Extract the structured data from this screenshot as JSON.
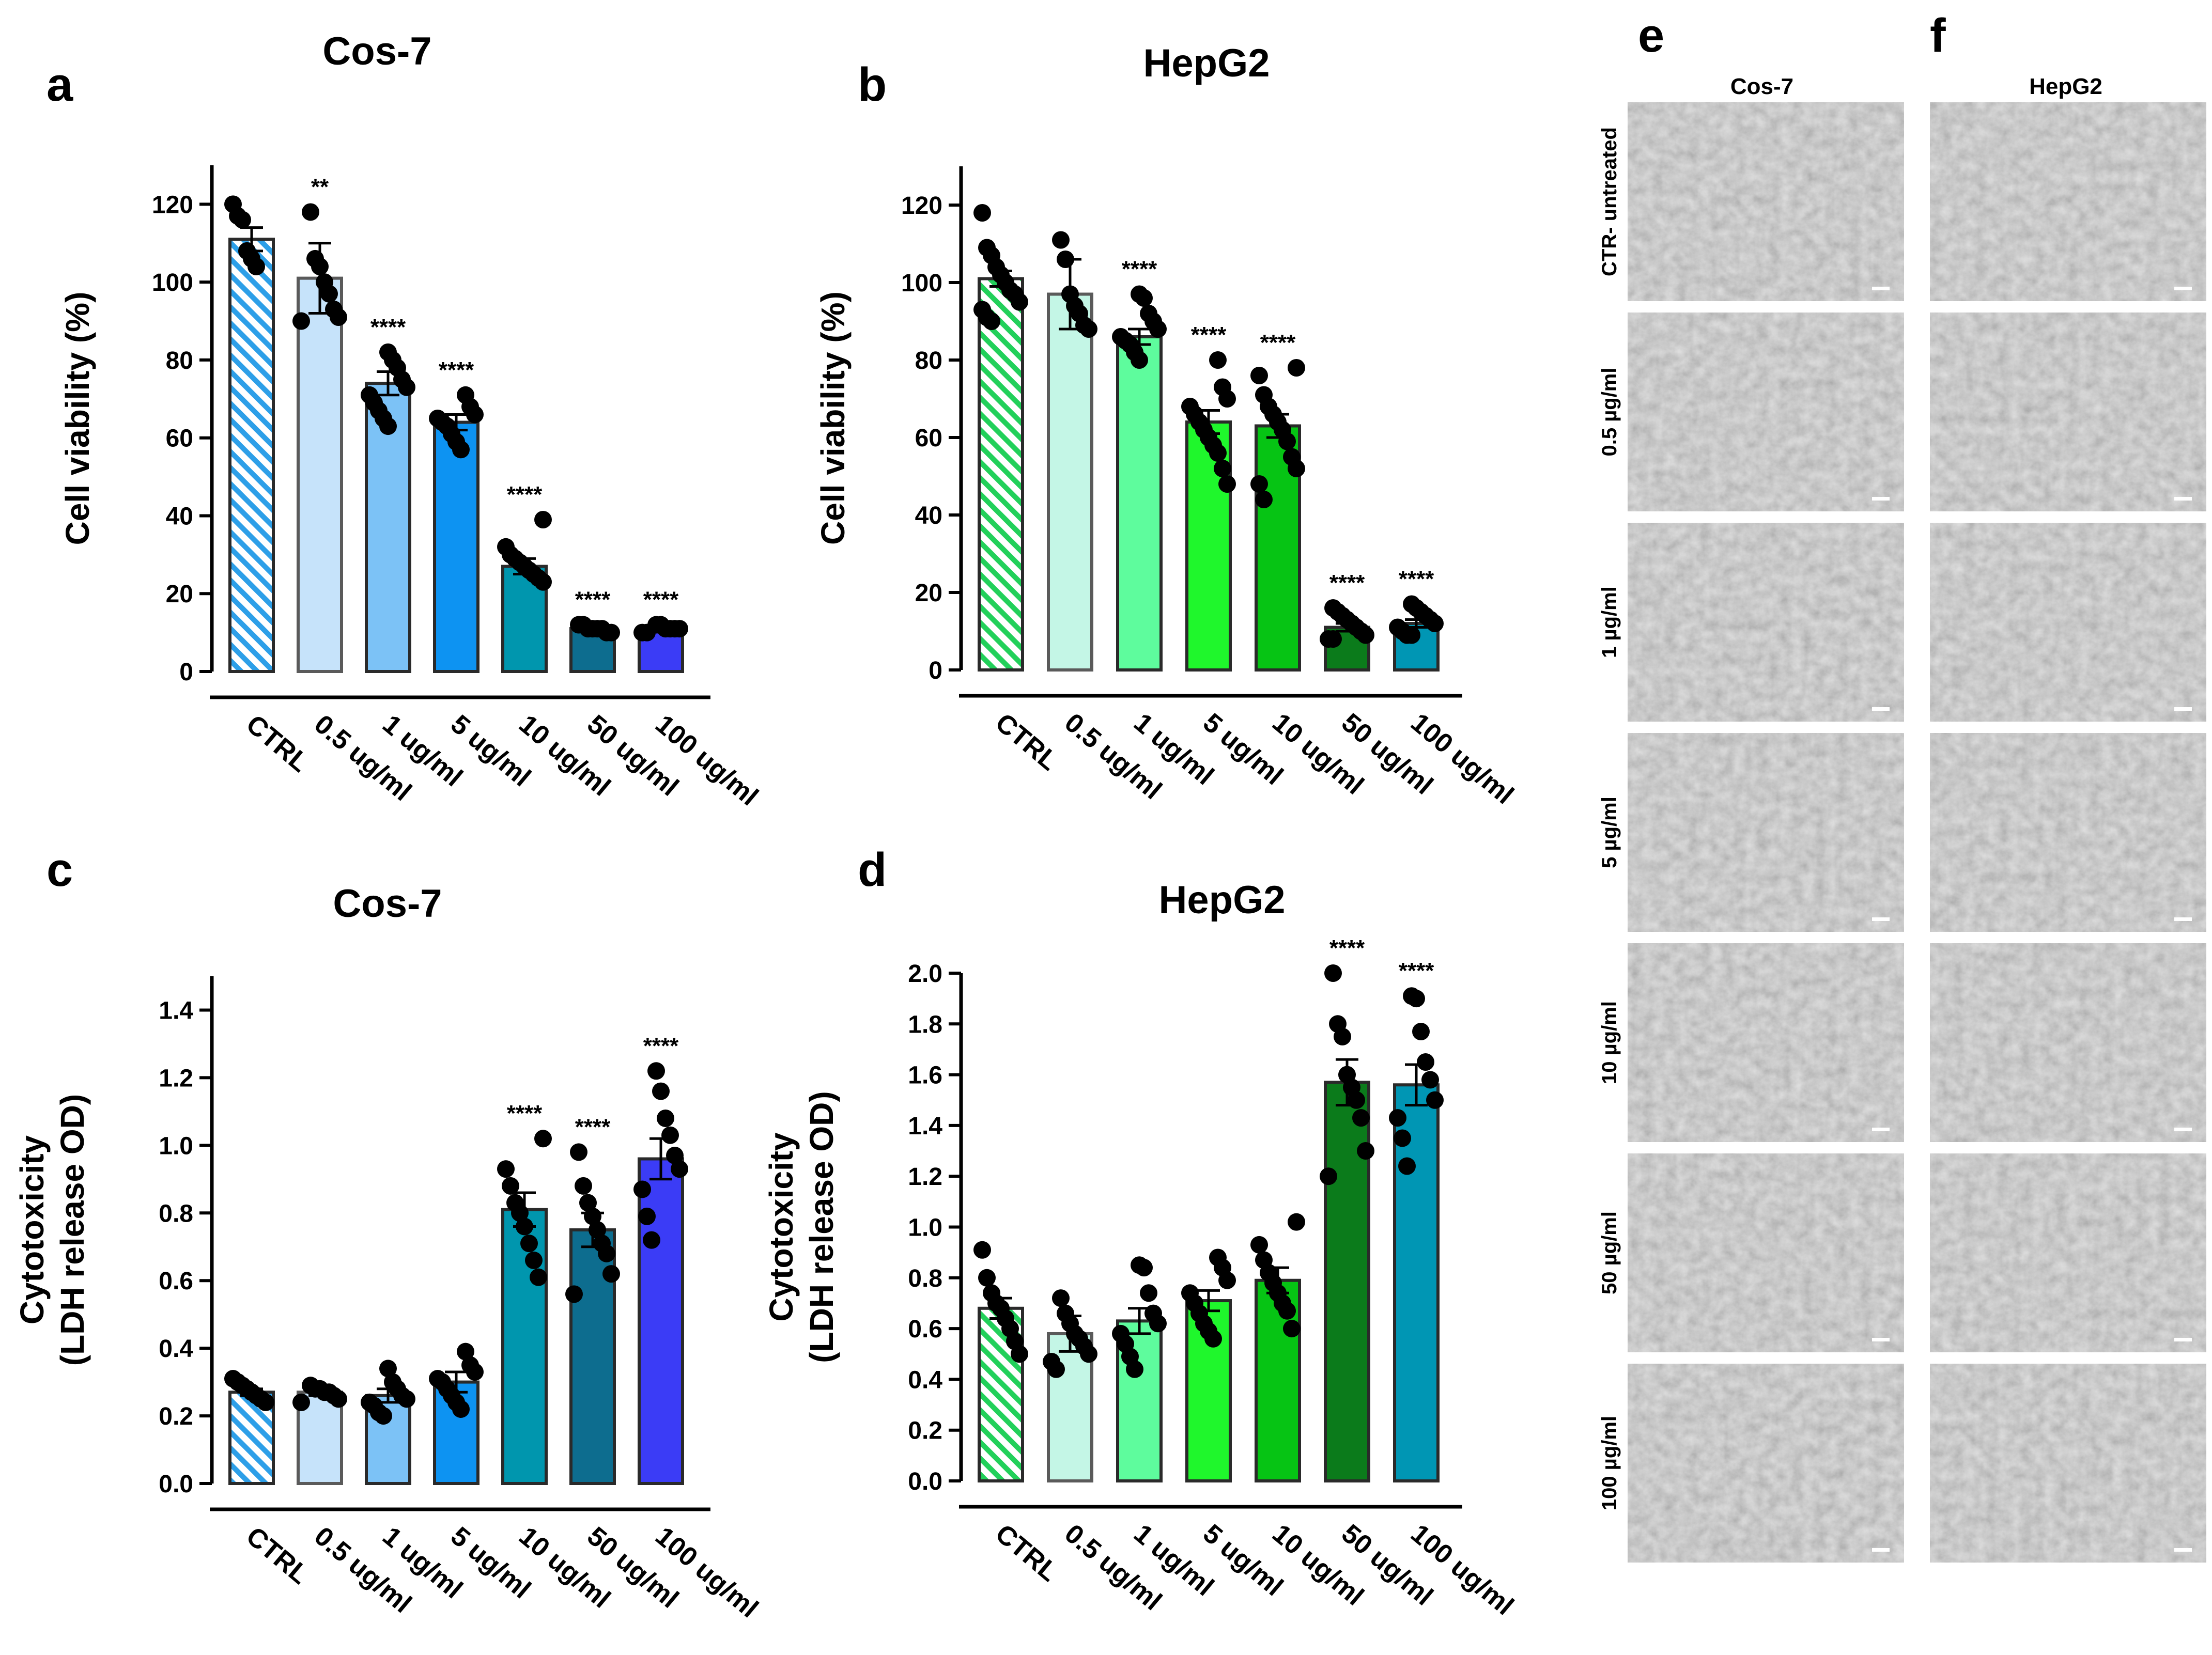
{
  "units": "ug/ml",
  "categories": [
    "CTRL",
    "0.5 ug/ml",
    "1 ug/ml",
    "5 ug/ml",
    "10 ug/ml",
    "50 ug/ml",
    "100 ug/ml"
  ],
  "panel_letters": {
    "a": "a",
    "b": "b",
    "c": "c",
    "d": "d",
    "e": "e",
    "f": "f"
  },
  "chart_data": [
    {
      "id": "a",
      "type": "bar",
      "title": "Cos-7",
      "xlabel": "",
      "ylabel": "Cell viability (%)",
      "ylabel_lines": [
        "Cell viability (%)"
      ],
      "ylim": [
        0,
        130
      ],
      "yticks": [
        0,
        20,
        40,
        60,
        80,
        100,
        120
      ],
      "categories": [
        "CTRL",
        "0.5 ug/ml",
        "1 ug/ml",
        "5 ug/ml",
        "10 ug/ml",
        "50 ug/ml",
        "100 ug/ml"
      ],
      "values": [
        111,
        101,
        74,
        64,
        27,
        11,
        11
      ],
      "errors": [
        3,
        9,
        3,
        2,
        2,
        0.5,
        0.5
      ],
      "significance": [
        "",
        "**",
        "****",
        "****",
        "****",
        "****",
        "****"
      ],
      "colors": [
        "#2d9fe8",
        "#c6e3fa",
        "#7cc2f6",
        "#0d93f2",
        "#0096ae",
        "#0d6d8f",
        "#3b3cf6"
      ],
      "hatched": [
        true,
        false,
        false,
        false,
        false,
        false,
        false
      ],
      "points": [
        [
          120,
          117,
          116,
          108,
          106,
          104
        ],
        [
          118,
          106,
          104,
          100,
          97,
          93,
          91,
          90
        ],
        [
          82,
          80,
          78,
          75,
          73,
          71,
          69,
          67,
          65,
          63
        ],
        [
          71,
          68,
          66,
          65,
          64,
          63,
          61,
          59,
          57
        ],
        [
          39,
          32,
          30,
          29,
          28,
          27,
          26,
          25,
          24,
          23
        ],
        [
          12,
          12,
          11,
          11,
          11,
          11,
          10,
          10
        ],
        [
          12,
          12,
          11,
          11,
          11,
          11,
          10,
          10
        ]
      ]
    },
    {
      "id": "b",
      "type": "bar",
      "title": "HepG2",
      "xlabel": "",
      "ylabel": "Cell viability (%)",
      "ylabel_lines": [
        "Cell viability (%)"
      ],
      "ylim": [
        0,
        130
      ],
      "yticks": [
        0,
        20,
        40,
        60,
        80,
        100,
        120
      ],
      "categories": [
        "CTRL",
        "0.5 ug/ml",
        "1 ug/ml",
        "5 ug/ml",
        "10 ug/ml",
        "50 ug/ml",
        "100 ug/ml"
      ],
      "values": [
        101,
        97,
        86,
        64,
        63,
        11,
        12
      ],
      "errors": [
        2,
        9,
        2,
        3,
        3,
        1,
        1
      ],
      "significance": [
        "",
        "",
        "****",
        "****",
        "****",
        "****",
        "****"
      ],
      "colors": [
        "#22d05a",
        "#c4f6e6",
        "#5efc9d",
        "#1ff72c",
        "#06c414",
        "#0b7b1b",
        "#0096b4"
      ],
      "hatched": [
        true,
        false,
        false,
        false,
        false,
        false,
        false
      ],
      "points": [
        [
          118,
          109,
          107,
          104,
          102,
          100,
          98,
          97,
          95,
          93,
          91,
          90
        ],
        [
          111,
          106,
          97,
          94,
          92,
          89,
          88
        ],
        [
          97,
          96,
          92,
          90,
          88,
          86,
          85,
          84,
          82,
          80
        ],
        [
          80,
          73,
          70,
          68,
          66,
          64,
          62,
          60,
          58,
          56,
          52,
          48
        ],
        [
          78,
          76,
          71,
          68,
          66,
          64,
          62,
          59,
          55,
          52,
          48,
          44
        ],
        [
          16,
          15,
          14,
          13,
          12,
          11,
          10,
          9,
          8,
          8
        ],
        [
          17,
          16,
          15,
          14,
          13,
          12,
          11,
          10,
          9,
          9
        ]
      ]
    },
    {
      "id": "c",
      "type": "bar",
      "title": "Cos-7",
      "xlabel": "",
      "ylabel": "Cytotoxicity (LDH release OD)",
      "ylabel_lines": [
        "Cytotoxicity",
        "(LDH release OD)"
      ],
      "ylim": [
        0,
        1.5
      ],
      "yticks": [
        0.0,
        0.2,
        0.4,
        0.6,
        0.8,
        1.0,
        1.2,
        1.4
      ],
      "categories": [
        "CTRL",
        "0.5 ug/ml",
        "1 ug/ml",
        "5 ug/ml",
        "10 ug/ml",
        "50 ug/ml",
        "100 ug/ml"
      ],
      "values": [
        0.27,
        0.27,
        0.26,
        0.3,
        0.81,
        0.75,
        0.96
      ],
      "errors": [
        0.01,
        0.01,
        0.02,
        0.03,
        0.05,
        0.05,
        0.06
      ],
      "significance": [
        "",
        "",
        "",
        "",
        "****",
        "****",
        "****"
      ],
      "colors": [
        "#2d9fe8",
        "#c6e3fa",
        "#7cc2f6",
        "#0d93f2",
        "#0096ae",
        "#0d6d8f",
        "#3b3cf6"
      ],
      "hatched": [
        true,
        false,
        false,
        false,
        false,
        false,
        false
      ],
      "points": [
        [
          0.31,
          0.3,
          0.29,
          0.28,
          0.27,
          0.26,
          0.25,
          0.24
        ],
        [
          0.29,
          0.28,
          0.28,
          0.27,
          0.27,
          0.26,
          0.25,
          0.24
        ],
        [
          0.34,
          0.3,
          0.28,
          0.26,
          0.25,
          0.24,
          0.23,
          0.21,
          0.2
        ],
        [
          0.39,
          0.35,
          0.33,
          0.31,
          0.3,
          0.28,
          0.26,
          0.24,
          0.22
        ],
        [
          1.02,
          0.93,
          0.88,
          0.83,
          0.8,
          0.76,
          0.71,
          0.66,
          0.61
        ],
        [
          0.98,
          0.88,
          0.83,
          0.79,
          0.75,
          0.71,
          0.68,
          0.62,
          0.56
        ],
        [
          1.22,
          1.16,
          1.08,
          1.03,
          0.97,
          0.93,
          0.87,
          0.79,
          0.72
        ]
      ]
    },
    {
      "id": "d",
      "type": "bar",
      "title": "HepG2",
      "xlabel": "",
      "ylabel": "Cytotoxicity (LDH release OD)",
      "ylabel_lines": [
        "Cytotoxicity",
        "(LDH release OD)"
      ],
      "ylim": [
        0,
        2.0
      ],
      "yticks": [
        0.0,
        0.2,
        0.4,
        0.6,
        0.8,
        1.0,
        1.2,
        1.4,
        1.6,
        1.8,
        2.0
      ],
      "categories": [
        "CTRL",
        "0.5 ug/ml",
        "1 ug/ml",
        "5 ug/ml",
        "10 ug/ml",
        "50 ug/ml",
        "100 ug/ml"
      ],
      "values": [
        0.68,
        0.58,
        0.63,
        0.71,
        0.79,
        1.57,
        1.56
      ],
      "errors": [
        0.04,
        0.07,
        0.05,
        0.04,
        0.05,
        0.09,
        0.08
      ],
      "significance": [
        "",
        "",
        "",
        "",
        "",
        "****",
        "****"
      ],
      "colors": [
        "#22d05a",
        "#c4f6e6",
        "#5efc9d",
        "#1ff72c",
        "#06c414",
        "#0b7b1b",
        "#0096b4"
      ],
      "hatched": [
        true,
        false,
        false,
        false,
        false,
        false,
        false
      ],
      "points": [
        [
          0.91,
          0.8,
          0.74,
          0.7,
          0.68,
          0.64,
          0.6,
          0.55,
          0.5
        ],
        [
          0.72,
          0.66,
          0.62,
          0.58,
          0.56,
          0.53,
          0.5,
          0.47,
          0.44
        ],
        [
          0.85,
          0.84,
          0.74,
          0.66,
          0.62,
          0.58,
          0.54,
          0.49,
          0.44
        ],
        [
          0.88,
          0.84,
          0.79,
          0.74,
          0.7,
          0.66,
          0.62,
          0.59,
          0.56
        ],
        [
          1.02,
          0.93,
          0.87,
          0.82,
          0.78,
          0.74,
          0.7,
          0.67,
          0.6
        ],
        [
          2.0,
          1.8,
          1.75,
          1.6,
          1.55,
          1.5,
          1.43,
          1.3,
          1.2
        ],
        [
          1.91,
          1.9,
          1.77,
          1.65,
          1.58,
          1.5,
          1.43,
          1.35,
          1.24
        ]
      ]
    }
  ],
  "micrographs": {
    "e": {
      "header": "Cos-7"
    },
    "f": {
      "header": "HepG2"
    },
    "row_labels": [
      "CTR- untreated",
      "0.5 µg/ml",
      "1 µg/ml",
      "5 µg/ml",
      "10 µg/ml",
      "50 µg/ml",
      "100 µg/ml"
    ]
  },
  "colors": {
    "axis": "#000000",
    "bar_stroke": "#2a2a2a",
    "image_bg": "#b4b4b4"
  }
}
